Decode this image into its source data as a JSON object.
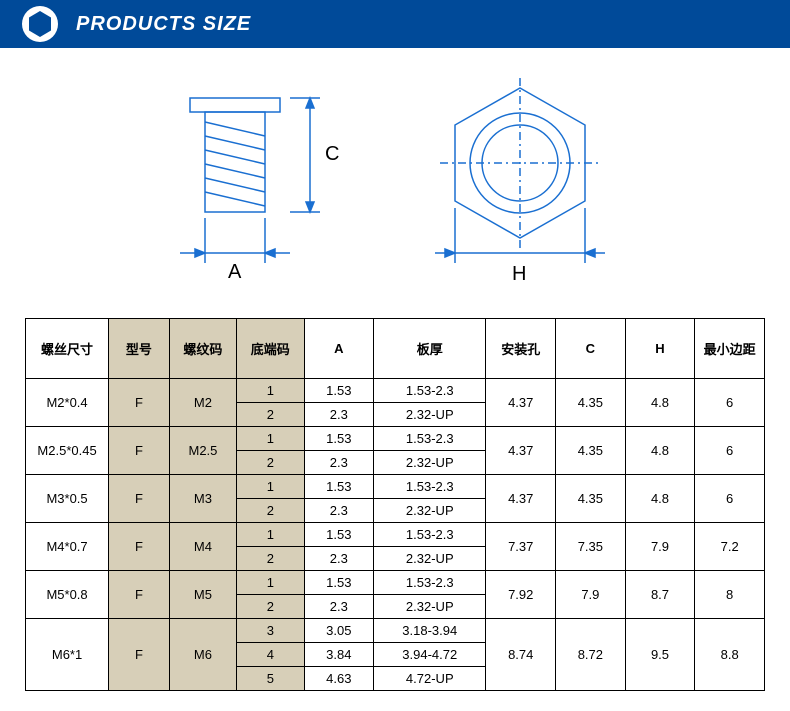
{
  "header": {
    "title": "PRODUCTS SIZE",
    "bar_color": "#004a99",
    "logo_stroke": "#ffffff"
  },
  "diagram": {
    "stroke": "#1a6fd1",
    "label_A": "A",
    "label_C": "C",
    "label_H": "H"
  },
  "table": {
    "header_bg_tan": "#d7cfb8",
    "columns": [
      "螺丝尺寸",
      "型号",
      "螺纹码",
      "底端码",
      "A",
      "板厚",
      "安装孔",
      "C",
      "H",
      "最小边距"
    ],
    "rows": [
      {
        "screw": "M2*0.4",
        "model": "F",
        "thread": "M2",
        "sub": [
          {
            "bottom": "1",
            "a": "1.53",
            "thick": "1.53-2.3"
          },
          {
            "bottom": "2",
            "a": "2.3",
            "thick": "2.32-UP"
          }
        ],
        "hole": "4.37",
        "c": "4.35",
        "h": "4.8",
        "edge": "6"
      },
      {
        "screw": "M2.5*0.45",
        "model": "F",
        "thread": "M2.5",
        "sub": [
          {
            "bottom": "1",
            "a": "1.53",
            "thick": "1.53-2.3"
          },
          {
            "bottom": "2",
            "a": "2.3",
            "thick": "2.32-UP"
          }
        ],
        "hole": "4.37",
        "c": "4.35",
        "h": "4.8",
        "edge": "6"
      },
      {
        "screw": "M3*0.5",
        "model": "F",
        "thread": "M3",
        "sub": [
          {
            "bottom": "1",
            "a": "1.53",
            "thick": "1.53-2.3"
          },
          {
            "bottom": "2",
            "a": "2.3",
            "thick": "2.32-UP"
          }
        ],
        "hole": "4.37",
        "c": "4.35",
        "h": "4.8",
        "edge": "6"
      },
      {
        "screw": "M4*0.7",
        "model": "F",
        "thread": "M4",
        "sub": [
          {
            "bottom": "1",
            "a": "1.53",
            "thick": "1.53-2.3"
          },
          {
            "bottom": "2",
            "a": "2.3",
            "thick": "2.32-UP"
          }
        ],
        "hole": "7.37",
        "c": "7.35",
        "h": "7.9",
        "edge": "7.2"
      },
      {
        "screw": "M5*0.8",
        "model": "F",
        "thread": "M5",
        "sub": [
          {
            "bottom": "1",
            "a": "1.53",
            "thick": "1.53-2.3"
          },
          {
            "bottom": "2",
            "a": "2.3",
            "thick": "2.32-UP"
          }
        ],
        "hole": "7.92",
        "c": "7.9",
        "h": "8.7",
        "edge": "8"
      },
      {
        "screw": "M6*1",
        "model": "F",
        "thread": "M6",
        "sub": [
          {
            "bottom": "3",
            "a": "3.05",
            "thick": "3.18-3.94"
          },
          {
            "bottom": "4",
            "a": "3.84",
            "thick": "3.94-4.72"
          },
          {
            "bottom": "5",
            "a": "4.63",
            "thick": "4.72-UP"
          }
        ],
        "hole": "8.74",
        "c": "8.72",
        "h": "9.5",
        "edge": "8.8"
      }
    ]
  }
}
